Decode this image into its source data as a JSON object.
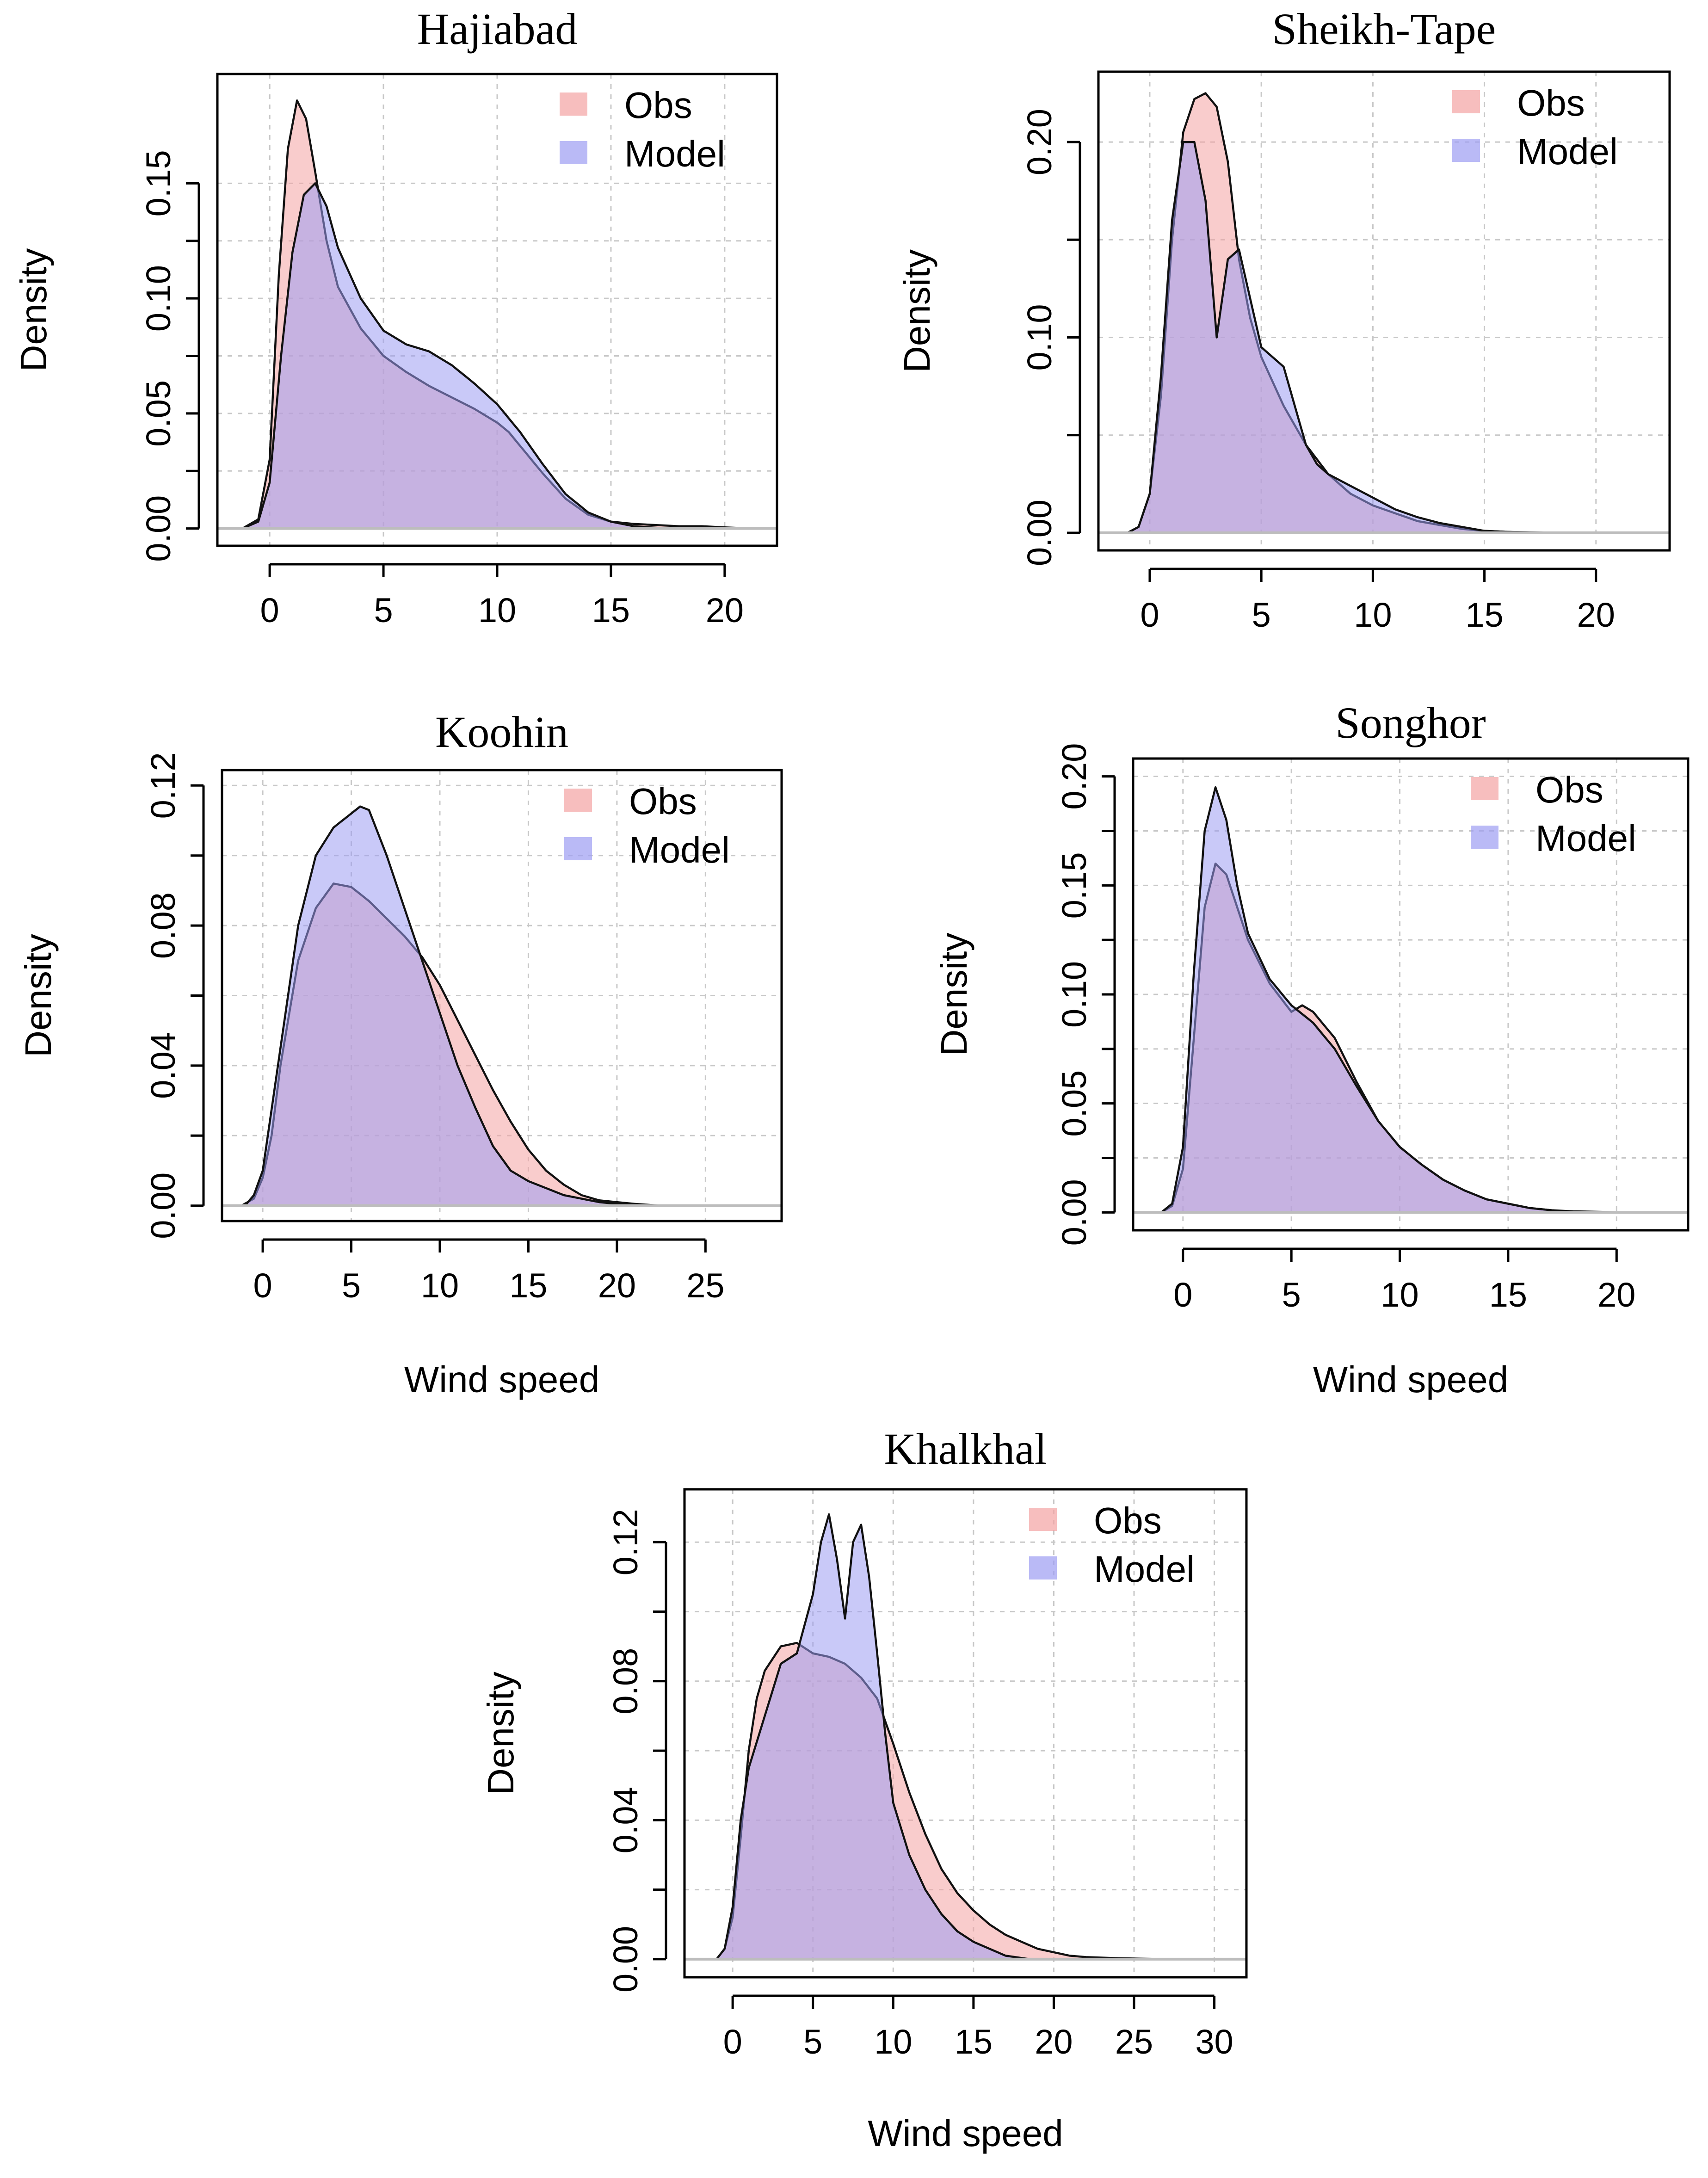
{
  "colors": {
    "obs_fill": "#f4a3a3",
    "model_fill": "#9d9df2",
    "curve_stroke": "#111111",
    "grid": "#c8c8c8"
  },
  "chart_data": [
    {
      "type": "area",
      "title": "Hajiabad",
      "xlabel": "",
      "ylabel": "Density",
      "xlim": [
        -2.3,
        22.3
      ],
      "ylim": [
        -0.0075,
        0.1975
      ],
      "x_ticks": [
        0,
        5,
        10,
        15,
        20
      ],
      "x_tick_labels": [
        "0",
        "5",
        "10",
        "15",
        "20"
      ],
      "y_ticks": [
        0,
        0.05,
        0.1,
        0.15
      ],
      "y_tick_labels": [
        "0.00",
        "0.05",
        "0.10",
        "0.15"
      ],
      "legend": {
        "position": "top-right",
        "entries": [
          "Obs",
          "Model"
        ]
      },
      "series": [
        {
          "name": "Obs",
          "x": [
            -1.2,
            -0.5,
            0,
            0.4,
            0.8,
            1.2,
            1.6,
            2,
            2.5,
            3,
            4,
            5,
            6,
            7,
            8,
            9,
            10,
            10.5,
            11,
            12,
            13,
            14,
            15,
            16,
            17,
            18,
            19,
            20,
            21.3
          ],
          "y": [
            0,
            0.004,
            0.03,
            0.11,
            0.165,
            0.186,
            0.178,
            0.155,
            0.125,
            0.105,
            0.087,
            0.075,
            0.068,
            0.062,
            0.057,
            0.052,
            0.046,
            0.042,
            0.036,
            0.024,
            0.013,
            0.006,
            0.003,
            0.002,
            0.0015,
            0.001,
            0.001,
            0.0005,
            0
          ]
        },
        {
          "name": "Model",
          "x": [
            -1.2,
            -0.5,
            0,
            0.5,
            1,
            1.5,
            2,
            2.5,
            3,
            4,
            5,
            6,
            7,
            8,
            9,
            10,
            11,
            12,
            13,
            14,
            15,
            16,
            17.5
          ],
          "y": [
            0,
            0.003,
            0.02,
            0.075,
            0.12,
            0.145,
            0.15,
            0.14,
            0.122,
            0.1,
            0.086,
            0.08,
            0.077,
            0.071,
            0.063,
            0.054,
            0.042,
            0.028,
            0.015,
            0.007,
            0.003,
            0.001,
            0
          ]
        }
      ]
    },
    {
      "type": "area",
      "title": "Sheikh-Tape",
      "xlabel": "",
      "ylabel": "Density",
      "xlim": [
        -2.3,
        23.3
      ],
      "ylim": [
        -0.009,
        0.236
      ],
      "x_ticks": [
        0,
        5,
        10,
        15,
        20
      ],
      "x_tick_labels": [
        "0",
        "5",
        "10",
        "15",
        "20"
      ],
      "y_ticks": [
        0,
        0.1,
        0.2
      ],
      "y_tick_labels": [
        "0.00",
        "0.10",
        "0.20"
      ],
      "legend": {
        "position": "top-right",
        "entries": [
          "Obs",
          "Model"
        ]
      },
      "series": [
        {
          "name": "Obs",
          "x": [
            -1,
            -0.5,
            0,
            0.5,
            1,
            1.5,
            2,
            2.5,
            3,
            3.5,
            4,
            4.5,
            5,
            6,
            7,
            8,
            9,
            10,
            11,
            12,
            13,
            14,
            15,
            16,
            17,
            18.7
          ],
          "y": [
            0,
            0.003,
            0.02,
            0.07,
            0.15,
            0.205,
            0.222,
            0.225,
            0.218,
            0.19,
            0.14,
            0.11,
            0.09,
            0.065,
            0.045,
            0.03,
            0.02,
            0.014,
            0.01,
            0.006,
            0.004,
            0.002,
            0.001,
            0.0005,
            0.0003,
            0
          ]
        },
        {
          "name": "Model",
          "x": [
            -1,
            -0.5,
            0,
            0.5,
            1,
            1.5,
            2,
            2.5,
            3,
            3.5,
            4,
            4.5,
            5,
            5.5,
            6,
            6.5,
            7,
            7.5,
            8,
            9,
            10,
            11,
            12,
            13,
            14,
            15,
            16,
            17.5
          ],
          "y": [
            0,
            0.003,
            0.02,
            0.08,
            0.16,
            0.2,
            0.2,
            0.17,
            0.1,
            0.14,
            0.145,
            0.12,
            0.095,
            0.09,
            0.085,
            0.065,
            0.045,
            0.035,
            0.03,
            0.024,
            0.018,
            0.012,
            0.008,
            0.005,
            0.003,
            0.001,
            0.0005,
            0
          ]
        }
      ]
    },
    {
      "type": "area",
      "title": "Koohin",
      "xlabel": "Wind speed",
      "ylabel": "Density",
      "xlim": [
        -2.3,
        29.3
      ],
      "ylim": [
        -0.0044,
        0.1244
      ],
      "x_ticks": [
        0,
        5,
        10,
        15,
        20,
        25
      ],
      "x_tick_labels": [
        "0",
        "5",
        "10",
        "15",
        "20",
        "25"
      ],
      "y_ticks": [
        0,
        0.04,
        0.08,
        0.12
      ],
      "y_tick_labels": [
        "0.00",
        "0.04",
        "0.08",
        "0.12"
      ],
      "legend": {
        "position": "top-right",
        "entries": [
          "Obs",
          "Model"
        ]
      },
      "series": [
        {
          "name": "Obs",
          "x": [
            -1.2,
            -0.5,
            0,
            0.5,
            1,
            2,
            3,
            4,
            5,
            6,
            7,
            8,
            9,
            10,
            11,
            12,
            13,
            14,
            15,
            16,
            17,
            18,
            19,
            20,
            21,
            22.5
          ],
          "y": [
            0,
            0.002,
            0.008,
            0.02,
            0.04,
            0.07,
            0.085,
            0.092,
            0.091,
            0.087,
            0.082,
            0.077,
            0.071,
            0.063,
            0.053,
            0.043,
            0.033,
            0.024,
            0.016,
            0.01,
            0.006,
            0.003,
            0.0015,
            0.001,
            0.0005,
            0
          ]
        },
        {
          "name": "Model",
          "x": [
            -1,
            -0.5,
            0,
            1,
            2,
            3,
            4,
            5,
            5.5,
            6,
            7,
            8,
            9,
            10,
            11,
            12,
            13,
            14,
            15,
            16,
            17,
            18,
            19,
            20,
            21
          ],
          "y": [
            0,
            0.003,
            0.01,
            0.045,
            0.08,
            0.1,
            0.108,
            0.112,
            0.114,
            0.113,
            0.1,
            0.085,
            0.07,
            0.055,
            0.04,
            0.028,
            0.017,
            0.01,
            0.007,
            0.005,
            0.003,
            0.002,
            0.001,
            0.0005,
            0
          ]
        }
      ]
    },
    {
      "type": "area",
      "title": "Songhor",
      "xlabel": "Wind speed",
      "ylabel": "Density",
      "xlim": [
        -2.3,
        23.3
      ],
      "ylim": [
        -0.0082,
        0.2082
      ],
      "x_ticks": [
        0,
        5,
        10,
        15,
        20
      ],
      "x_tick_labels": [
        "0",
        "5",
        "10",
        "15",
        "20"
      ],
      "y_ticks": [
        0,
        0.05,
        0.1,
        0.15,
        0.2
      ],
      "y_tick_labels": [
        "0.00",
        "0.05",
        "0.10",
        "0.15",
        "0.20"
      ],
      "legend": {
        "position": "top-right",
        "entries": [
          "Obs",
          "Model"
        ]
      },
      "series": [
        {
          "name": "Obs",
          "x": [
            -1,
            -0.5,
            0,
            0.5,
            1,
            1.5,
            2,
            2.5,
            3,
            4,
            5,
            5.5,
            6,
            7,
            8,
            9,
            10,
            11,
            12,
            13,
            14,
            15,
            16,
            17,
            18,
            19,
            20.5
          ],
          "y": [
            0,
            0.003,
            0.02,
            0.08,
            0.14,
            0.16,
            0.155,
            0.14,
            0.125,
            0.105,
            0.092,
            0.095,
            0.092,
            0.08,
            0.06,
            0.042,
            0.03,
            0.022,
            0.015,
            0.01,
            0.006,
            0.004,
            0.002,
            0.001,
            0.0005,
            0.0003,
            0
          ]
        },
        {
          "name": "Model",
          "x": [
            -1,
            -0.5,
            0,
            0.5,
            1,
            1.5,
            2,
            2.5,
            3,
            4,
            5,
            6,
            7,
            8,
            9,
            10,
            11,
            12,
            13,
            14,
            15,
            16,
            17,
            18
          ],
          "y": [
            0,
            0.004,
            0.03,
            0.11,
            0.175,
            0.195,
            0.18,
            0.15,
            0.128,
            0.107,
            0.095,
            0.087,
            0.075,
            0.058,
            0.042,
            0.03,
            0.022,
            0.015,
            0.01,
            0.006,
            0.004,
            0.002,
            0.001,
            0
          ]
        }
      ]
    },
    {
      "type": "area",
      "title": "Khalkhal",
      "xlabel": "Wind speed",
      "ylabel": "Density",
      "xlim": [
        -3,
        32
      ],
      "ylim": [
        -0.0052,
        0.1352
      ],
      "x_ticks": [
        0,
        5,
        10,
        15,
        20,
        25,
        30
      ],
      "x_tick_labels": [
        "0",
        "5",
        "10",
        "15",
        "20",
        "25",
        "30"
      ],
      "y_ticks": [
        0,
        0.04,
        0.08,
        0.12
      ],
      "y_tick_labels": [
        "0.00",
        "0.04",
        "0.08",
        "0.12"
      ],
      "legend": {
        "position": "top-right",
        "entries": [
          "Obs",
          "Model"
        ]
      },
      "series": [
        {
          "name": "Obs",
          "x": [
            -1,
            -0.5,
            0,
            0.5,
            1,
            1.5,
            2,
            3,
            4,
            5,
            6,
            7,
            8,
            9,
            10,
            11,
            12,
            13,
            14,
            15,
            16,
            17,
            18,
            19,
            20,
            21,
            22,
            24,
            27
          ],
          "y": [
            0,
            0.003,
            0.012,
            0.035,
            0.06,
            0.075,
            0.083,
            0.09,
            0.091,
            0.088,
            0.087,
            0.085,
            0.081,
            0.075,
            0.062,
            0.048,
            0.036,
            0.026,
            0.019,
            0.014,
            0.01,
            0.007,
            0.005,
            0.003,
            0.002,
            0.001,
            0.0006,
            0.0003,
            0
          ]
        },
        {
          "name": "Model",
          "x": [
            -1,
            -0.5,
            0,
            0.5,
            1,
            2,
            3,
            4,
            5,
            5.5,
            6,
            6.5,
            7,
            7.5,
            8,
            8.5,
            9,
            9.5,
            10,
            11,
            12,
            13,
            14,
            15,
            16,
            17,
            18.5
          ],
          "y": [
            0,
            0.003,
            0.015,
            0.04,
            0.055,
            0.07,
            0.085,
            0.088,
            0.105,
            0.12,
            0.128,
            0.115,
            0.098,
            0.12,
            0.125,
            0.11,
            0.088,
            0.065,
            0.045,
            0.03,
            0.02,
            0.013,
            0.008,
            0.005,
            0.003,
            0.001,
            0
          ]
        }
      ]
    }
  ]
}
